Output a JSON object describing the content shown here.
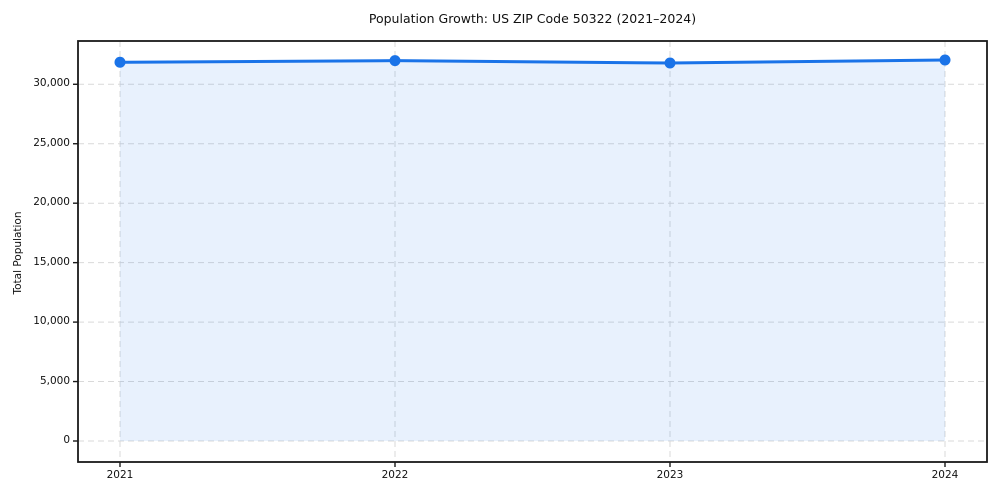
{
  "chart_data": {
    "type": "line",
    "title": "Population Growth: US ZIP Code 50322 (2021–2024)",
    "xlabel": "",
    "ylabel": "Total Population",
    "categories": [
      "2021",
      "2022",
      "2023",
      "2024"
    ],
    "series": [
      {
        "name": "Total Population",
        "values": [
          31850,
          31990,
          31790,
          32040
        ]
      }
    ],
    "area_fill": true,
    "area_baseline": 0,
    "markers": true,
    "grid": true,
    "grid_style": "dashed",
    "legend": false,
    "ylim": [
      -1766,
      33640
    ],
    "yticks": [
      0,
      5000,
      10000,
      15000,
      20000,
      25000,
      30000
    ],
    "colors": {
      "line": "#1a73e8",
      "marker": "#1a73e8",
      "fill": "#1a73e8",
      "fill_opacity": 0.1,
      "grid": "#d9d9d9",
      "spine": "#1a1a1a",
      "tick": "#1a1a1a",
      "text": "#111111",
      "background": "#ffffff"
    }
  }
}
